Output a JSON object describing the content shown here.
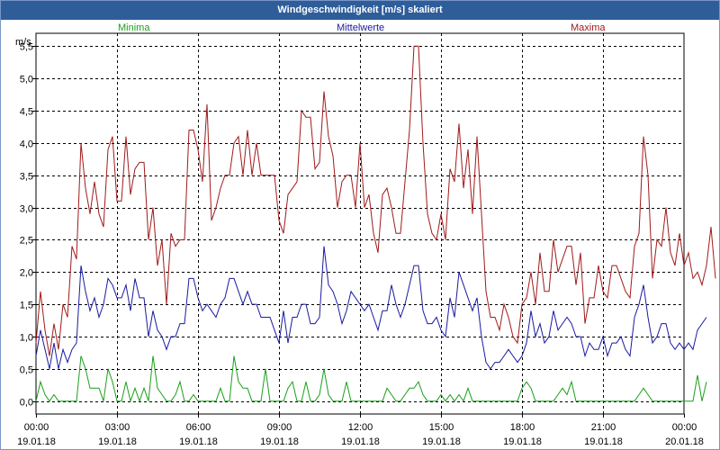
{
  "window": {
    "title": "Windgeschwindigkeit [m/s] skaliert"
  },
  "legend": [
    {
      "label": "Minima",
      "color": "#1aa01a"
    },
    {
      "label": "Mittelwerte",
      "color": "#1a1aa0"
    },
    {
      "label": "Maxima",
      "color": "#a01a1a"
    }
  ],
  "chart_data": {
    "type": "line",
    "title": "Windgeschwindigkeit [m/s] skaliert",
    "ylabel": "m/s",
    "ylim": [
      -0.2,
      5.7
    ],
    "yticks": [
      "0,0",
      "0,5",
      "1,0",
      "1,5",
      "2,0",
      "2,5",
      "3,0",
      "3,5",
      "4,0",
      "4,5",
      "5,0",
      "5,5"
    ],
    "xlim": [
      0,
      24
    ],
    "xticks": [
      {
        "time": "00:00",
        "date": "19.01.18"
      },
      {
        "time": "03:00",
        "date": "19.01.18"
      },
      {
        "time": "06:00",
        "date": "19.01.18"
      },
      {
        "time": "09:00",
        "date": "19.01.18"
      },
      {
        "time": "12:00",
        "date": "19.01.18"
      },
      {
        "time": "15:00",
        "date": "19.01.18"
      },
      {
        "time": "18:00",
        "date": "19.01.18"
      },
      {
        "time": "21:00",
        "date": "19.01.18"
      },
      {
        "time": "00:00",
        "date": "20.01.18"
      }
    ],
    "grid": true,
    "x_step_hours": 0.16667,
    "series": [
      {
        "name": "Maxima",
        "color": "#a01a1a",
        "values": [
          0.9,
          1.7,
          1.1,
          0.7,
          1.2,
          0.8,
          1.5,
          1.3,
          2.4,
          2.2,
          4.0,
          3.3,
          2.9,
          3.4,
          2.9,
          2.7,
          3.9,
          4.1,
          3.1,
          3.1,
          4.1,
          3.2,
          3.6,
          3.7,
          3.7,
          2.5,
          3.0,
          2.1,
          2.5,
          1.5,
          2.6,
          2.4,
          2.5,
          2.5,
          4.2,
          4.2,
          3.9,
          3.4,
          4.6,
          2.8,
          3.0,
          3.3,
          3.5,
          3.5,
          4.0,
          4.1,
          3.5,
          4.2,
          3.5,
          4.0,
          3.5,
          3.5,
          3.5,
          3.5,
          2.8,
          2.6,
          3.2,
          3.3,
          3.4,
          4.5,
          4.4,
          4.4,
          3.6,
          3.7,
          4.8,
          4.1,
          3.8,
          3.0,
          3.4,
          3.5,
          3.5,
          3.0,
          4.0,
          3.0,
          3.2,
          2.6,
          2.3,
          3.2,
          3.3,
          3.0,
          2.6,
          2.6,
          3.4,
          4.2,
          5.5,
          5.5,
          4.0,
          2.9,
          2.6,
          2.5,
          2.9,
          2.5,
          3.6,
          3.4,
          4.3,
          3.3,
          3.9,
          2.9,
          4.1,
          2.9,
          1.7,
          1.3,
          1.3,
          1.1,
          1.5,
          1.3,
          1.0,
          0.9,
          1.5,
          1.6,
          2.0,
          1.5,
          2.3,
          1.7,
          1.7,
          2.5,
          2.0,
          2.2,
          2.4,
          2.4,
          1.8,
          2.3,
          1.2,
          1.6,
          1.6,
          2.1,
          1.7,
          1.6,
          2.1,
          2.1,
          1.9,
          1.7,
          1.6,
          2.4,
          2.6,
          4.1,
          3.5,
          1.9,
          2.5,
          2.4,
          3.0,
          2.3,
          2.1,
          2.6,
          2.1,
          2.3,
          1.9,
          2.0,
          1.8,
          2.1,
          2.7,
          1.9
        ]
      },
      {
        "name": "Mittelwerte",
        "color": "#1a1aa0",
        "values": [
          0.7,
          1.1,
          0.8,
          0.5,
          0.9,
          0.5,
          0.8,
          0.6,
          0.8,
          0.9,
          2.1,
          1.7,
          1.4,
          1.6,
          1.3,
          1.5,
          1.9,
          1.8,
          1.6,
          1.6,
          1.8,
          1.4,
          1.9,
          1.6,
          1.6,
          1.0,
          1.4,
          1.1,
          1.0,
          0.8,
          1.0,
          1.0,
          1.2,
          1.2,
          1.9,
          1.9,
          1.6,
          1.4,
          1.5,
          1.4,
          1.3,
          1.5,
          1.6,
          1.9,
          1.9,
          1.7,
          1.5,
          1.7,
          1.5,
          1.5,
          1.3,
          1.3,
          1.3,
          1.1,
          0.9,
          1.4,
          0.9,
          1.3,
          1.3,
          1.5,
          1.5,
          1.2,
          1.2,
          1.3,
          2.4,
          1.8,
          1.7,
          1.5,
          1.2,
          1.4,
          1.7,
          1.6,
          1.5,
          1.4,
          1.5,
          1.3,
          1.1,
          1.4,
          1.4,
          1.8,
          1.5,
          1.3,
          1.5,
          1.8,
          2.1,
          2.1,
          1.4,
          1.2,
          1.2,
          1.3,
          1.1,
          1.0,
          1.6,
          1.3,
          2.0,
          1.8,
          1.6,
          1.4,
          1.6,
          1.0,
          0.6,
          0.5,
          0.6,
          0.6,
          0.7,
          0.8,
          0.7,
          0.6,
          0.7,
          0.9,
          1.4,
          1.0,
          1.2,
          0.9,
          1.0,
          1.4,
          1.1,
          1.2,
          1.3,
          1.2,
          1.0,
          1.0,
          0.7,
          0.9,
          0.8,
          0.8,
          1.0,
          0.7,
          0.9,
          0.9,
          1.0,
          0.8,
          0.7,
          1.3,
          1.5,
          1.8,
          1.3,
          0.9,
          1.0,
          1.2,
          1.2,
          0.9,
          0.8,
          0.9,
          0.8,
          0.9,
          0.8,
          1.1,
          1.2,
          1.3
        ]
      },
      {
        "name": "Minima",
        "color": "#1aa01a",
        "values": [
          0.0,
          0.3,
          0.1,
          0.0,
          0.1,
          0.0,
          0.0,
          0.0,
          0.0,
          0.0,
          0.7,
          0.5,
          0.2,
          0.2,
          0.2,
          0.0,
          0.5,
          0.3,
          0.0,
          0.0,
          0.3,
          0.0,
          0.2,
          0.0,
          0.2,
          0.0,
          0.7,
          0.2,
          0.1,
          0.0,
          0.0,
          0.1,
          0.3,
          0.0,
          0.0,
          0.1,
          0.0,
          0.0,
          0.0,
          0.0,
          0.0,
          0.2,
          0.0,
          0.0,
          0.7,
          0.3,
          0.2,
          0.2,
          0.0,
          0.0,
          0.0,
          0.5,
          0.0,
          0.0,
          0.0,
          0.0,
          0.2,
          0.3,
          0.0,
          0.0,
          0.3,
          0.0,
          0.0,
          0.1,
          0.5,
          0.1,
          0.0,
          0.0,
          0.0,
          0.3,
          0.0,
          0.0,
          0.0,
          0.0,
          0.0,
          0.0,
          0.0,
          0.0,
          0.2,
          0.1,
          0.0,
          0.0,
          0.1,
          0.2,
          0.2,
          0.3,
          0.1,
          0.0,
          0.0,
          0.0,
          0.1,
          0.0,
          0.1,
          0.0,
          0.1,
          0.0,
          0.2,
          0.0,
          0.0,
          0.0,
          0.0,
          0.0,
          0.0,
          0.0,
          0.0,
          0.0,
          0.0,
          0.0,
          0.2,
          0.3,
          0.2,
          0.0,
          0.0,
          0.0,
          0.0,
          0.0,
          0.1,
          0.2,
          0.1,
          0.3,
          0.0,
          0.0,
          0.0,
          0.0,
          0.0,
          0.0,
          0.0,
          0.0,
          0.0,
          0.0,
          0.0,
          0.0,
          0.0,
          0.0,
          0.1,
          0.2,
          0.1,
          0.0,
          0.0,
          0.0,
          0.0,
          0.0,
          0.0,
          0.0,
          0.0,
          0.0,
          0.0,
          0.4,
          0.0,
          0.3
        ]
      }
    ]
  }
}
